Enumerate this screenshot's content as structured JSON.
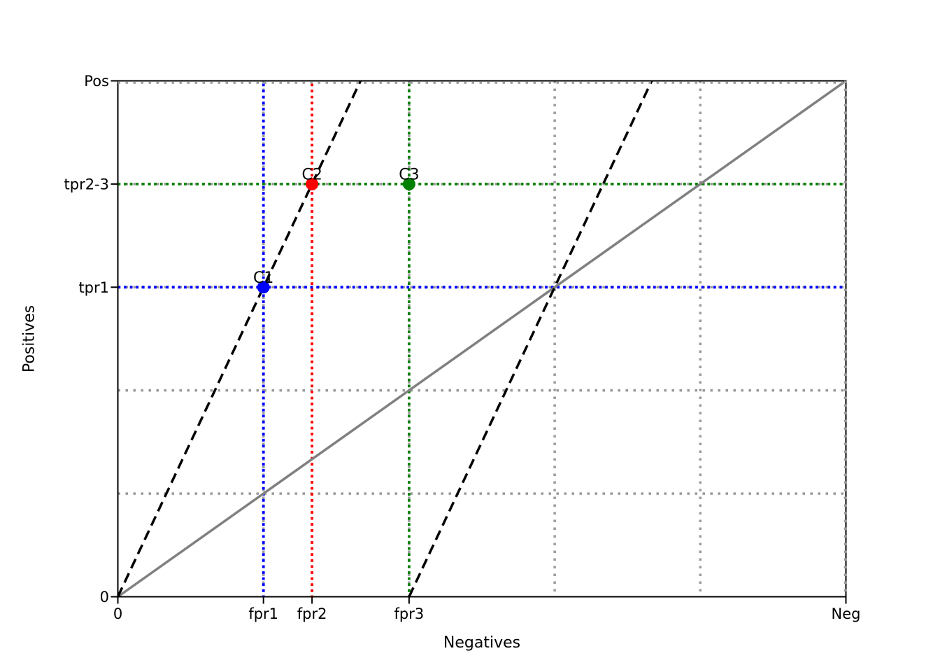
{
  "chart_data": {
    "type": "line",
    "title": "",
    "xlabel": "Negatives",
    "ylabel": "Positives",
    "xlim": [
      0,
      1
    ],
    "ylim": [
      0,
      1
    ],
    "axis_color": "#000000",
    "x_ticks": [
      {
        "pos": 0,
        "label": "0"
      },
      {
        "pos": 0.2,
        "label": "fpr1"
      },
      {
        "pos": 0.2667,
        "label": "fpr2"
      },
      {
        "pos": 0.4,
        "label": "fpr3"
      },
      {
        "pos": 1,
        "label": "Neg"
      }
    ],
    "y_ticks": [
      {
        "pos": 0,
        "label": "0"
      },
      {
        "pos": 0.6,
        "label": "tpr1"
      },
      {
        "pos": 0.8,
        "label": "tpr2-3"
      },
      {
        "pos": 1,
        "label": "Pos"
      }
    ],
    "grid": {
      "style": "dotted",
      "color": "#9b9b9b",
      "x_positions": [
        0.2,
        0.4,
        0.6,
        0.8,
        1.0
      ],
      "y_positions": [
        0.2,
        0.4,
        0.6,
        0.8,
        1.0
      ]
    },
    "guide_lines": [
      {
        "orient": "v",
        "pos": 0.2,
        "color": "#0000ff",
        "name": "fpr1-vline"
      },
      {
        "orient": "v",
        "pos": 0.2667,
        "color": "#ff0000",
        "name": "fpr2-vline"
      },
      {
        "orient": "v",
        "pos": 0.4,
        "color": "#008000",
        "name": "fpr3-vline"
      },
      {
        "orient": "h",
        "pos": 0.6,
        "color": "#0000ff",
        "name": "tpr1-hline"
      },
      {
        "orient": "h",
        "pos": 0.8,
        "color": "#008000",
        "name": "tpr2-3-hline"
      }
    ],
    "series": [
      {
        "name": "diagonal-line",
        "style": "solid",
        "color": "#808080",
        "width": 3.5,
        "points": [
          [
            0,
            0
          ],
          [
            1,
            1
          ]
        ]
      },
      {
        "name": "iso-line-origin",
        "style": "dashed",
        "color": "#000000",
        "width": 3.5,
        "points": [
          [
            0,
            0
          ],
          [
            0.3333,
            1
          ]
        ]
      },
      {
        "name": "iso-line-shifted",
        "style": "dashed",
        "color": "#000000",
        "width": 3.5,
        "points": [
          [
            0.4,
            0
          ],
          [
            0.7333,
            1
          ]
        ]
      }
    ],
    "points": [
      {
        "label": "C1",
        "x": 0.2,
        "y": 0.6,
        "color": "#0000ff"
      },
      {
        "label": "C2",
        "x": 0.2667,
        "y": 0.8,
        "color": "#ff0000"
      },
      {
        "label": "C3",
        "x": 0.4,
        "y": 0.8,
        "color": "#008000"
      }
    ]
  }
}
